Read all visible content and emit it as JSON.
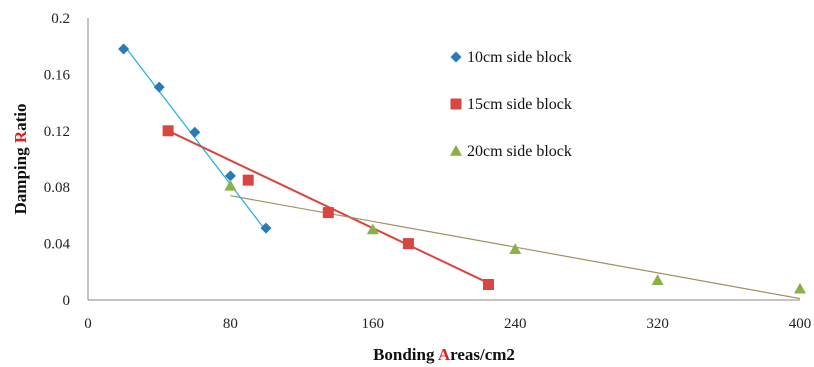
{
  "chart_data": {
    "type": "scatter",
    "title": "",
    "xlabel": {
      "parts": [
        {
          "text": "Bonding ",
          "color": "#111111"
        },
        {
          "text": "A",
          "color": "#e02020"
        },
        {
          "text": "reas/cm2",
          "color": "#111111"
        }
      ]
    },
    "ylabel": {
      "parts": [
        {
          "text": "Damping ",
          "color": "#111111"
        },
        {
          "text": "R",
          "color": "#e02020"
        },
        {
          "text": "atio",
          "color": "#111111"
        }
      ]
    },
    "xlim": [
      0,
      400
    ],
    "ylim": [
      0,
      0.2
    ],
    "xticks": [
      0,
      80,
      160,
      240,
      320,
      400
    ],
    "yticks": [
      0,
      0.04,
      0.08,
      0.12,
      0.16,
      0.2
    ],
    "xtick_labels": [
      "0",
      "80",
      "160",
      "240",
      "320",
      "400"
    ],
    "ytick_labels": [
      "0",
      "0.04",
      "0.08",
      "0.12",
      "0.16",
      "0.2"
    ],
    "grid": false,
    "legend_position": "right",
    "series": [
      {
        "name": "10cm side block",
        "marker": "diamond",
        "color": "#2a7ab8",
        "line_color": "#1ab0e0",
        "x": [
          20,
          40,
          60,
          80,
          100
        ],
        "y": [
          0.178,
          0.151,
          0.119,
          0.088,
          0.051
        ],
        "trend": [
          [
            20,
            0.181
          ],
          [
            100,
            0.049
          ]
        ]
      },
      {
        "name": "15cm side block",
        "marker": "square",
        "color": "#d9453f",
        "line_color": "#d9453f",
        "x": [
          45,
          90,
          135,
          180,
          225
        ],
        "y": [
          0.12,
          0.085,
          0.062,
          0.04,
          0.011
        ],
        "trend": [
          [
            45,
            0.12
          ],
          [
            225,
            0.012
          ]
        ]
      },
      {
        "name": "20cm side block",
        "marker": "triangle",
        "color": "#8ab04a",
        "line_color": "#a09060",
        "x": [
          80,
          160,
          240,
          320,
          400
        ],
        "y": [
          0.081,
          0.05,
          0.036,
          0.014,
          0.008
        ],
        "trend": [
          [
            80,
            0.074
          ],
          [
            400,
            0.001
          ]
        ]
      }
    ]
  }
}
